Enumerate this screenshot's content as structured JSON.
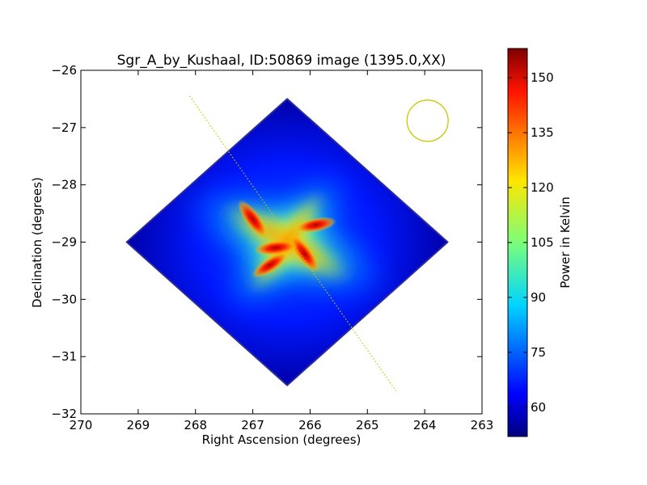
{
  "chart_data": {
    "type": "heatmap",
    "title": "Sgr_A_by_Kushaal, ID:50869 image (1395.0,XX)",
    "xlabel": "Right Ascension (degrees)",
    "ylabel": "Declination (degrees)",
    "xlim": [
      270,
      263
    ],
    "ylim": [
      -32,
      -26
    ],
    "x_ticks": [
      {
        "value": 270,
        "label": "270"
      },
      {
        "value": 269,
        "label": "269"
      },
      {
        "value": 268,
        "label": "268"
      },
      {
        "value": 267,
        "label": "267"
      },
      {
        "value": 266,
        "label": "266"
      },
      {
        "value": 265,
        "label": "265"
      },
      {
        "value": 264,
        "label": "264"
      },
      {
        "value": 263,
        "label": "263"
      }
    ],
    "y_ticks": [
      {
        "value": -26,
        "label": "−26"
      },
      {
        "value": -27,
        "label": "−27"
      },
      {
        "value": -28,
        "label": "−28"
      },
      {
        "value": -29,
        "label": "−29"
      },
      {
        "value": -30,
        "label": "−30"
      },
      {
        "value": -31,
        "label": "−31"
      },
      {
        "value": -32,
        "label": "−32"
      }
    ],
    "colorbar": {
      "label": "Power in Kelvin",
      "range": [
        52,
        158
      ],
      "colormap": "jet",
      "ticks": [
        {
          "value": 60,
          "label": "60"
        },
        {
          "value": 75,
          "label": "75"
        },
        {
          "value": 90,
          "label": "90"
        },
        {
          "value": 105,
          "label": "105"
        },
        {
          "value": 120,
          "label": "120"
        },
        {
          "value": 135,
          "label": "135"
        },
        {
          "value": 150,
          "label": "150"
        }
      ]
    },
    "field": {
      "center_ra": 266.4,
      "center_dec": -29.0,
      "vertices": [
        [
          266.4,
          -26.5
        ],
        [
          263.6,
          -29.0
        ],
        [
          266.4,
          -31.5
        ],
        [
          269.2,
          -29.0
        ]
      ],
      "background_value": 52
    },
    "hotspots": [
      {
        "ra": 267.0,
        "dec": -28.6,
        "value": 152
      },
      {
        "ra": 266.1,
        "dec": -29.2,
        "value": 150
      },
      {
        "ra": 266.6,
        "dec": -29.1,
        "value": 145
      },
      {
        "ra": 265.9,
        "dec": -28.7,
        "value": 140
      },
      {
        "ra": 266.7,
        "dec": -29.4,
        "value": 140
      }
    ],
    "galactic_plane_line": [
      [
        268.1,
        -26.45
      ],
      [
        264.5,
        -31.6
      ]
    ],
    "beam_circle": {
      "ra": 263.95,
      "dec": -26.88,
      "radius_deg": 0.36
    },
    "colors": {
      "overlay": "#c8c800",
      "axes": "#000000",
      "background": "#ffffff"
    }
  }
}
